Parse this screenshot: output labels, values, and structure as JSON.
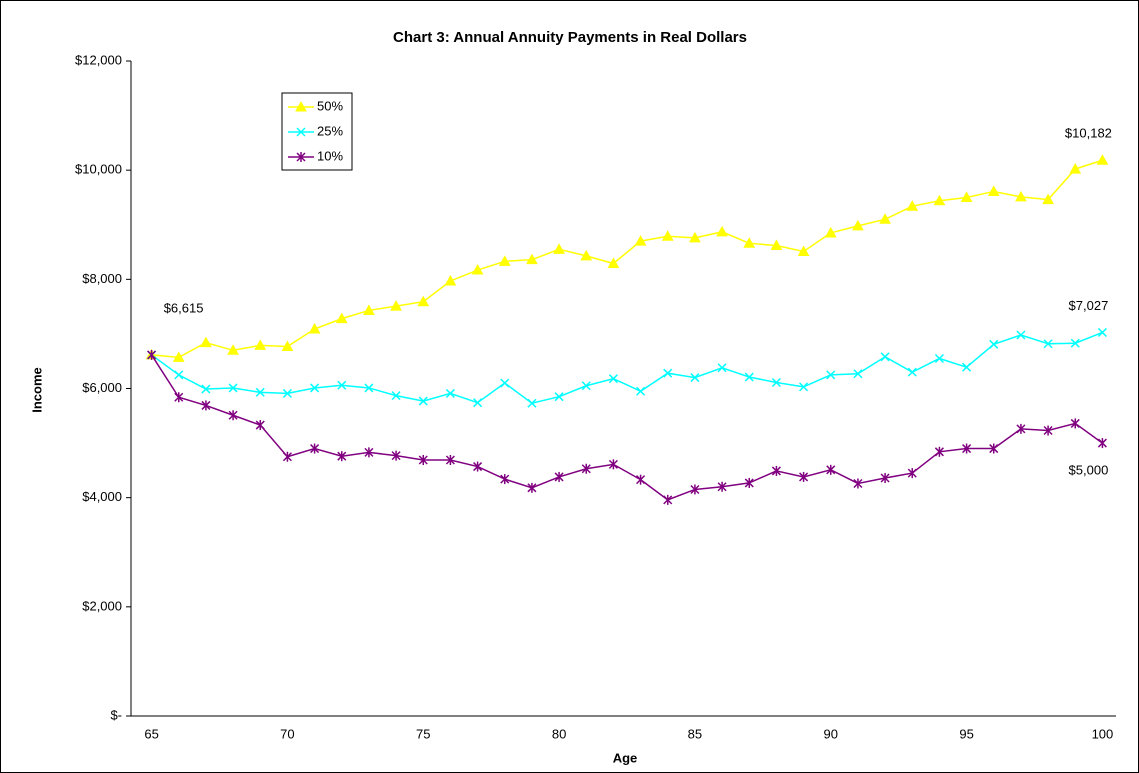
{
  "chart_data": {
    "type": "line",
    "title": "Chart 3: Annual Annuity Payments in Real Dollars",
    "x_label": "Age",
    "y_label": "Income",
    "categories": [
      "65",
      null,
      null,
      null,
      null,
      "70",
      null,
      null,
      null,
      null,
      "75",
      null,
      null,
      null,
      null,
      "80",
      null,
      null,
      null,
      null,
      "85",
      null,
      null,
      null,
      null,
      "90",
      null,
      null,
      null,
      null,
      "95",
      null,
      null,
      null,
      null,
      "100"
    ],
    "series": [
      {
        "name": "50%",
        "color": "#ffff00",
        "marker": "triangle",
        "values": [
          6615,
          6570,
          6840,
          6700,
          6790,
          6770,
          7090,
          7280,
          7430,
          7510,
          7590,
          7970,
          8170,
          8330,
          8360,
          8550,
          8430,
          8290,
          8700,
          8790,
          8760,
          8870,
          8660,
          8620,
          8510,
          8850,
          8980,
          9100,
          9340,
          9440,
          9500,
          9610,
          9510,
          9460,
          10020,
          10182
        ],
        "value_labels": [
          "$6,615",
          null,
          null,
          null,
          null,
          null,
          null,
          null,
          null,
          null,
          null,
          null,
          null,
          null,
          null,
          null,
          null,
          null,
          null,
          null,
          null,
          null,
          null,
          null,
          null,
          null,
          null,
          null,
          null,
          null,
          null,
          null,
          null,
          null,
          null,
          "$10,182"
        ]
      },
      {
        "name": "25%",
        "color": "#00ffff",
        "marker": "x",
        "values": [
          6615,
          6250,
          5990,
          6010,
          5930,
          5910,
          6010,
          6060,
          6010,
          5870,
          5770,
          5910,
          5740,
          6100,
          5730,
          5850,
          6050,
          6180,
          5950,
          6280,
          6200,
          6380,
          6210,
          6110,
          6030,
          6250,
          6270,
          6580,
          6300,
          6550,
          6390,
          6810,
          6980,
          6820,
          6830,
          7027
        ],
        "value_labels": [
          null,
          null,
          null,
          null,
          null,
          null,
          null,
          null,
          null,
          null,
          null,
          null,
          null,
          null,
          null,
          null,
          null,
          null,
          null,
          null,
          null,
          null,
          null,
          null,
          null,
          null,
          null,
          null,
          null,
          null,
          null,
          null,
          null,
          null,
          null,
          "$7,027"
        ]
      },
      {
        "name": "10%",
        "color": "#800080",
        "marker": "star",
        "values": [
          6615,
          5840,
          5690,
          5510,
          5330,
          4750,
          4900,
          4760,
          4830,
          4770,
          4690,
          4690,
          4570,
          4340,
          4180,
          4380,
          4530,
          4610,
          4330,
          3960,
          4150,
          4200,
          4270,
          4490,
          4380,
          4510,
          4260,
          4360,
          4450,
          4840,
          4900,
          4900,
          5260,
          5230,
          5360,
          5000
        ],
        "value_labels": [
          null,
          null,
          null,
          null,
          null,
          null,
          null,
          null,
          null,
          null,
          null,
          null,
          null,
          null,
          null,
          null,
          null,
          null,
          null,
          null,
          null,
          null,
          null,
          null,
          null,
          null,
          null,
          null,
          null,
          null,
          null,
          null,
          null,
          null,
          null,
          "$5,000"
        ]
      }
    ],
    "ylim": [
      0,
      12000
    ],
    "yticks": [
      {
        "value": 0,
        "label": "$-"
      },
      {
        "value": 2000,
        "label": "$2,000"
      },
      {
        "value": 4000,
        "label": "$4,000"
      },
      {
        "value": 6000,
        "label": "$6,000"
      },
      {
        "value": 8000,
        "label": "$8,000"
      },
      {
        "value": 10000,
        "label": "$10,000"
      },
      {
        "value": 12000,
        "label": "$12,000"
      }
    ],
    "grid": false,
    "legend": "upper left"
  }
}
